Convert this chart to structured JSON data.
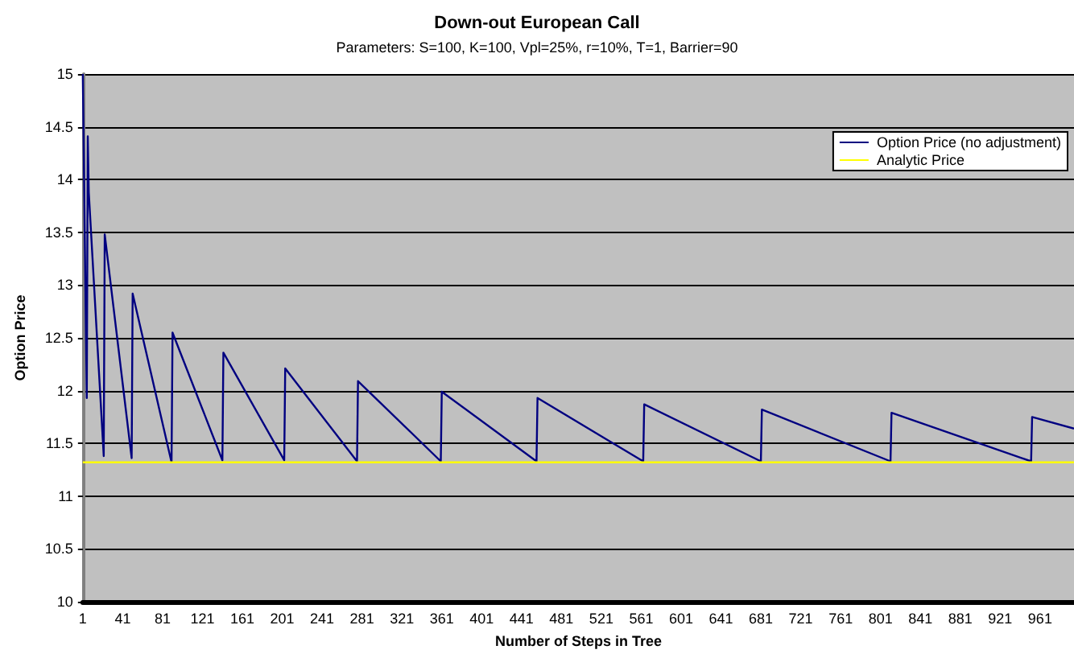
{
  "chart_data": {
    "type": "line",
    "title": "Down-out European Call",
    "subtitle": "Parameters: S=100, K=100, Vpl=25%, r=10%, T=1, Barrier=90",
    "xlabel": "Number of Steps in Tree",
    "ylabel": "Option Price",
    "xlim": [
      1,
      995
    ],
    "xticks": [
      1,
      41,
      81,
      121,
      161,
      201,
      241,
      281,
      321,
      361,
      401,
      441,
      481,
      521,
      561,
      601,
      641,
      681,
      721,
      761,
      801,
      841,
      881,
      921,
      961
    ],
    "ylim": [
      10,
      15
    ],
    "yticks": [
      10,
      10.5,
      11,
      11.5,
      12,
      12.5,
      13,
      13.5,
      14,
      14.5,
      15
    ],
    "grid": "y",
    "legend": "top right",
    "marker": "none",
    "line_style": "solid",
    "series": [
      {
        "name": "Option Price (no adjustment)",
        "color": "#000080",
        "x": [
          1,
          5,
          6,
          7,
          22,
          23,
          50,
          51,
          90,
          91,
          141,
          142,
          203,
          204,
          276,
          277,
          360,
          361,
          456,
          457,
          563,
          564,
          681,
          682,
          811,
          812,
          952,
          953,
          995
        ],
        "values": [
          15,
          11.93,
          14.41,
          13.88,
          11.38,
          13.48,
          11.36,
          12.92,
          11.32,
          12.55,
          11.34,
          12.36,
          11.34,
          12.21,
          11.33,
          12.09,
          11.33,
          11.99,
          11.33,
          11.93,
          11.33,
          11.87,
          11.33,
          11.82,
          11.33,
          11.79,
          11.33,
          11.75,
          11.64
        ]
      },
      {
        "name": "Analytic Price",
        "color": "#ffff00",
        "x": [
          1,
          995
        ],
        "values": [
          11.32,
          11.32
        ]
      }
    ]
  }
}
